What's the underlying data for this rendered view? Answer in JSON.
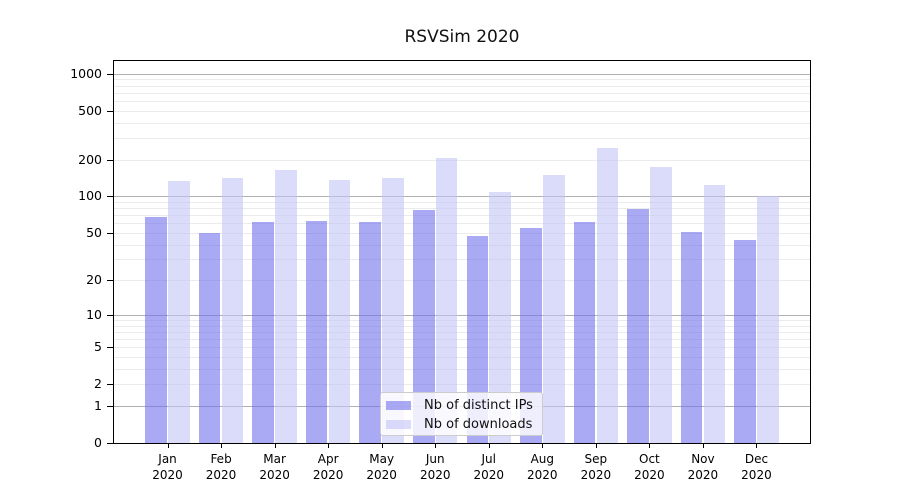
{
  "title": "RSVSim 2020",
  "chart_data": {
    "type": "bar",
    "title": "RSVSim 2020",
    "xlabel": "",
    "ylabel": "",
    "y_scale": "symlog (position proportional to ln(1+value))",
    "ylim": [
      0,
      1285
    ],
    "grid": "on",
    "legend_position": "lower center",
    "categories": [
      "Jan 2020",
      "Feb 2020",
      "Mar 2020",
      "Apr 2020",
      "May 2020",
      "Jun 2020",
      "Jul 2020",
      "Aug 2020",
      "Sep 2020",
      "Oct 2020",
      "Nov 2020",
      "Dec 2020"
    ],
    "series": [
      {
        "name": "Nb of distinct IPs",
        "color_displayed": "#aaaaf4",
        "fill": "rgba(113,113,237,0.6)",
        "values": [
          67,
          50,
          61,
          63,
          61,
          77,
          47,
          55,
          61,
          78,
          51,
          44
        ]
      },
      {
        "name": "Nb of downloads",
        "color_displayed": "#dbdbfa",
        "fill": "rgba(195,195,247,0.6)",
        "values": [
          134,
          141,
          164,
          137,
          141,
          206,
          109,
          150,
          250,
          173,
          123,
          101
        ]
      }
    ],
    "y_ticks": [
      0,
      1,
      2,
      5,
      10,
      20,
      50,
      100,
      200,
      500,
      1000
    ],
    "grid_major": [
      1,
      10,
      100,
      1000
    ],
    "grid_minor": [
      2,
      3,
      4,
      5,
      6,
      7,
      8,
      9,
      20,
      30,
      40,
      50,
      60,
      70,
      80,
      90,
      200,
      300,
      400,
      500,
      600,
      700,
      800,
      900
    ],
    "grid_major_color": "#b0b0b0",
    "grid_minor_color": "#ebebeb",
    "axis_color": "#000000"
  },
  "legend": {
    "items": [
      "Nb of distinct IPs",
      "Nb of downloads"
    ]
  }
}
